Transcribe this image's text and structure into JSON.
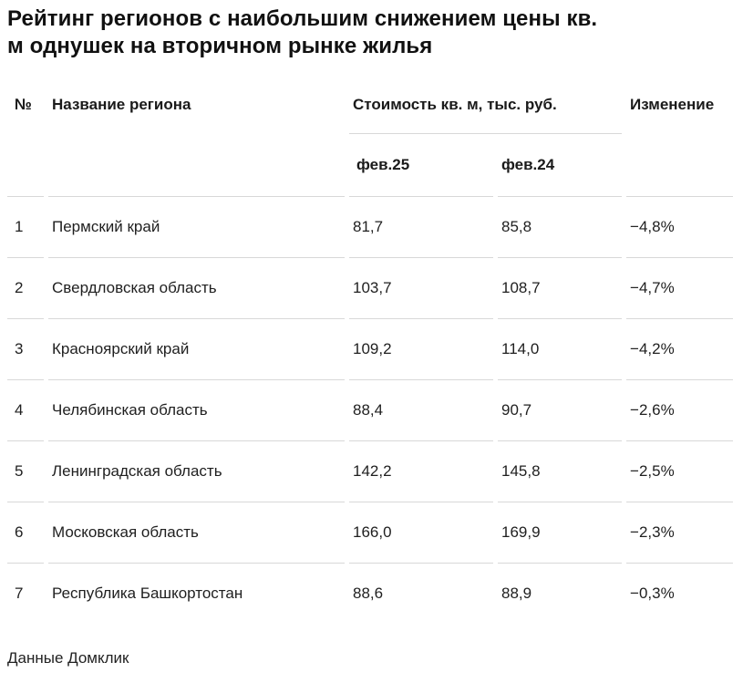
{
  "title": {
    "line1": "Рейтинг регионов с наибольшим снижением цены кв.",
    "line2": "м однушек на вторичном рынке жилья"
  },
  "table": {
    "headers": {
      "num": "№",
      "region": "Название региона",
      "price_group": "Стоимость кв. м, тыс. руб.",
      "feb25": "фев.25",
      "feb24": "фев.24",
      "change": "Изменение"
    },
    "rows": [
      {
        "num": "1",
        "region": "Пермский край",
        "feb25": "81,7",
        "feb24": "85,8",
        "change": "−4,8%"
      },
      {
        "num": "2",
        "region": "Свердловская область",
        "feb25": "103,7",
        "feb24": "108,7",
        "change": "−4,7%"
      },
      {
        "num": "3",
        "region": "Красноярский край",
        "feb25": "109,2",
        "feb24": "114,0",
        "change": "−4,2%"
      },
      {
        "num": "4",
        "region": "Челябинская область",
        "feb25": "88,4",
        "feb24": "90,7",
        "change": "−2,6%"
      },
      {
        "num": "5",
        "region": "Ленинградская область",
        "feb25": "142,2",
        "feb24": "145,8",
        "change": "−2,5%"
      },
      {
        "num": "6",
        "region": "Московская область",
        "feb25": "166,0",
        "feb24": "169,9",
        "change": "−2,3%"
      },
      {
        "num": "7",
        "region": "Республика Башкортостан",
        "feb25": "88,6",
        "feb24": "88,9",
        "change": "−0,3%"
      }
    ]
  },
  "footer": {
    "source": "Данные Домклик"
  },
  "colors": {
    "divider": "#d8d8d8",
    "text": "#1f1f1f",
    "background": "#ffffff"
  },
  "chart_data": {
    "type": "table",
    "title": "Рейтинг регионов с наибольшим снижением цены кв. м однушек на вторичном рынке жилья",
    "columns": [
      "№",
      "Название региона",
      "Стоимость кв. м, тыс. руб. (фев.25)",
      "Стоимость кв. м, тыс. руб. (фев.24)",
      "Изменение, %"
    ],
    "rows": [
      [
        1,
        "Пермский край",
        81.7,
        85.8,
        -4.8
      ],
      [
        2,
        "Свердловская область",
        103.7,
        108.7,
        -4.7
      ],
      [
        3,
        "Красноярский край",
        109.2,
        114.0,
        -4.2
      ],
      [
        4,
        "Челябинская область",
        88.4,
        90.7,
        -2.6
      ],
      [
        5,
        "Ленинградская область",
        142.2,
        145.8,
        -2.5
      ],
      [
        6,
        "Московская область",
        166.0,
        169.9,
        -2.3
      ],
      [
        7,
        "Республика Башкортостан",
        88.6,
        88.9,
        -0.3
      ]
    ],
    "units": {
      "price": "тыс. руб. за кв. м",
      "change": "%"
    },
    "source": "Данные Домклик"
  }
}
